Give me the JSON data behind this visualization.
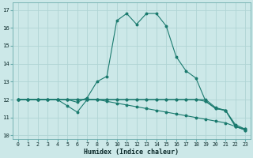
{
  "xlabel": "Humidex (Indice chaleur)",
  "bg_color": "#cce8e8",
  "grid_color": "#b0d4d4",
  "line_color": "#1a7a6e",
  "xlim": [
    -0.5,
    23.5
  ],
  "ylim": [
    9.8,
    17.4
  ],
  "xticks": [
    0,
    1,
    2,
    3,
    4,
    5,
    6,
    7,
    8,
    9,
    10,
    11,
    12,
    13,
    14,
    15,
    16,
    17,
    18,
    19,
    20,
    21,
    22,
    23
  ],
  "yticks": [
    10,
    11,
    12,
    13,
    14,
    15,
    16,
    17
  ],
  "series": [
    {
      "x": [
        0,
        1,
        2,
        3,
        4,
        5,
        6,
        7,
        8,
        9,
        10,
        11,
        12,
        13,
        14,
        15,
        16,
        17,
        18,
        19,
        20,
        21,
        22,
        23
      ],
      "y": [
        12,
        12,
        12,
        12,
        12,
        12,
        11.85,
        12.1,
        13.0,
        13.3,
        16.4,
        16.8,
        16.2,
        16.8,
        16.8,
        16.1,
        14.4,
        13.6,
        13.2,
        11.9,
        11.5,
        11.4,
        10.5,
        10.3
      ]
    },
    {
      "x": [
        0,
        1,
        2,
        3,
        4,
        5,
        6,
        7,
        8,
        9,
        10,
        11,
        12,
        13,
        14,
        15,
        16,
        17,
        18,
        19,
        20,
        21,
        22,
        23
      ],
      "y": [
        12,
        12,
        12,
        12,
        12,
        11.65,
        11.3,
        12.0,
        12.0,
        12.0,
        12.0,
        12.0,
        12.0,
        12.0,
        12.0,
        12.0,
        12.0,
        12.0,
        12.0,
        11.9,
        11.5,
        11.4,
        10.5,
        10.3
      ]
    },
    {
      "x": [
        0,
        1,
        2,
        3,
        4,
        5,
        6,
        7,
        8,
        9,
        10,
        11,
        12,
        13,
        14,
        15,
        16,
        17,
        18,
        19,
        20,
        21,
        22,
        23
      ],
      "y": [
        12,
        12,
        12,
        12,
        12,
        12,
        12,
        12,
        12,
        12,
        12,
        12,
        12,
        12,
        12,
        12,
        12,
        12,
        12,
        12,
        11.55,
        11.4,
        10.6,
        10.35
      ]
    },
    {
      "x": [
        0,
        1,
        2,
        3,
        4,
        5,
        6,
        7,
        8,
        9,
        10,
        11,
        12,
        13,
        14,
        15,
        16,
        17,
        18,
        19,
        20,
        21,
        22,
        23
      ],
      "y": [
        12,
        12,
        12,
        12,
        12,
        12,
        12,
        12,
        12,
        11.9,
        11.8,
        11.7,
        11.6,
        11.5,
        11.4,
        11.3,
        11.2,
        11.1,
        11.0,
        10.9,
        10.8,
        10.7,
        10.5,
        10.35
      ]
    }
  ]
}
